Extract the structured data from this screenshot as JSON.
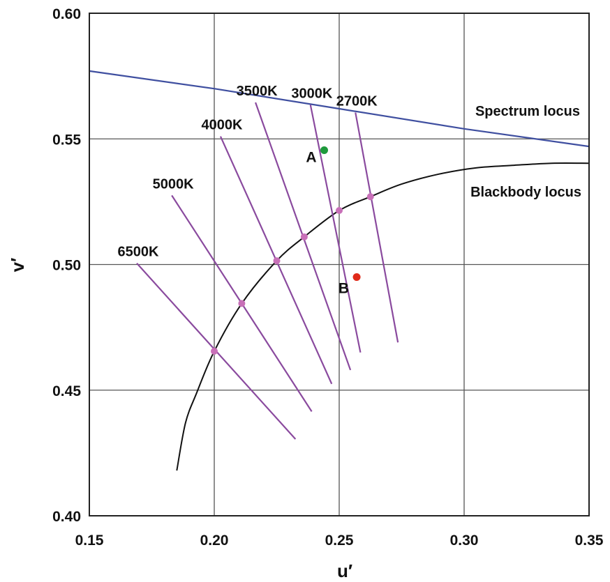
{
  "chart_data": {
    "type": "line",
    "xlabel": "u′",
    "ylabel": "v′",
    "xlim": [
      0.15,
      0.35
    ],
    "ylim": [
      0.4,
      0.6
    ],
    "x_ticks": [
      "0.15",
      "0.20",
      "0.25",
      "0.30",
      "0.35"
    ],
    "y_ticks": [
      "0.40",
      "0.45",
      "0.50",
      "0.55",
      "0.60"
    ],
    "grid": true,
    "colors": {
      "spectrum_locus": "#3f4fa0",
      "blackbody_locus": "#111111",
      "isotemperature_lines": "#8a4a9e",
      "intersection_points": "#c870b8",
      "point_A": "#1e9a3c",
      "point_B": "#e02a1a"
    },
    "spectrum_locus": {
      "label": "Spectrum locus",
      "points": [
        [
          0.15,
          0.577
        ],
        [
          0.2,
          0.57
        ],
        [
          0.25,
          0.562
        ],
        [
          0.3,
          0.554
        ],
        [
          0.35,
          0.547
        ]
      ]
    },
    "blackbody_locus": {
      "label": "Blackbody locus",
      "points": [
        [
          0.185,
          0.418
        ],
        [
          0.1885,
          0.437
        ],
        [
          0.193,
          0.449
        ],
        [
          0.2,
          0.4655
        ],
        [
          0.211,
          0.4845
        ],
        [
          0.225,
          0.5015
        ],
        [
          0.236,
          0.511
        ],
        [
          0.25,
          0.5215
        ],
        [
          0.2625,
          0.527
        ],
        [
          0.275,
          0.532
        ],
        [
          0.29,
          0.536
        ],
        [
          0.305,
          0.5385
        ],
        [
          0.32,
          0.5395
        ],
        [
          0.335,
          0.5403
        ],
        [
          0.35,
          0.5403
        ]
      ]
    },
    "isotemperature_lines": [
      {
        "label": "6500K",
        "start": [
          0.169,
          0.5005
        ],
        "end": [
          0.2325,
          0.4305
        ],
        "blackbody_point": [
          0.2,
          0.4655
        ]
      },
      {
        "label": "5000K",
        "start": [
          0.183,
          0.5275
        ],
        "end": [
          0.239,
          0.4415
        ],
        "blackbody_point": [
          0.211,
          0.4845
        ]
      },
      {
        "label": "4000K",
        "start": [
          0.2025,
          0.551
        ],
        "end": [
          0.247,
          0.4525
        ],
        "blackbody_point": [
          0.225,
          0.5015
        ]
      },
      {
        "label": "3500K",
        "start": [
          0.2165,
          0.5645
        ],
        "end": [
          0.2545,
          0.458
        ],
        "blackbody_point": [
          0.236,
          0.511
        ]
      },
      {
        "label": "3000K",
        "start": [
          0.2385,
          0.5635
        ],
        "end": [
          0.2585,
          0.465
        ],
        "blackbody_point": [
          0.25,
          0.5215
        ]
      },
      {
        "label": "2700K",
        "start": [
          0.2565,
          0.5605
        ],
        "end": [
          0.2735,
          0.469
        ],
        "blackbody_point": [
          0.2625,
          0.527
        ]
      }
    ],
    "points": [
      {
        "label": "A",
        "u": 0.244,
        "v": 0.5455
      },
      {
        "label": "B",
        "u": 0.257,
        "v": 0.495
      }
    ]
  }
}
